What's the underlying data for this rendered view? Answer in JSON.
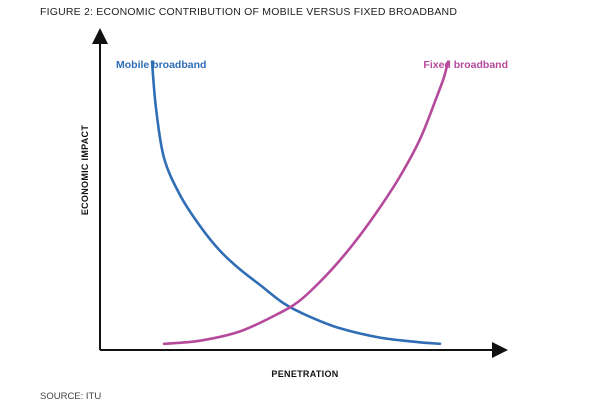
{
  "title": "FIGURE 2: ECONOMIC CONTRIBUTION OF MOBILE VERSUS FIXED BROADBAND",
  "source": "SOURCE: ITU",
  "chart_data": {
    "type": "line",
    "xlabel": "PENETRATION",
    "ylabel": "ECONOMIC IMPACT",
    "xlim": [
      0,
      1
    ],
    "ylim": [
      0,
      1
    ],
    "grid": false,
    "legend": "series labels above curves",
    "series": [
      {
        "name": "Mobile broadband",
        "color": "#2f6db5",
        "x": [
          0.13,
          0.14,
          0.16,
          0.2,
          0.25,
          0.3,
          0.35,
          0.4,
          0.46,
          0.52,
          0.6,
          0.7,
          0.8,
          0.85
        ],
        "y": [
          0.93,
          0.78,
          0.62,
          0.5,
          0.4,
          0.32,
          0.26,
          0.21,
          0.15,
          0.11,
          0.07,
          0.04,
          0.025,
          0.02
        ]
      },
      {
        "name": "Fixed broadband",
        "color": "#b5499b",
        "x": [
          0.16,
          0.25,
          0.35,
          0.45,
          0.5,
          0.55,
          0.6,
          0.65,
          0.7,
          0.75,
          0.8,
          0.84,
          0.86,
          0.87
        ],
        "y": [
          0.02,
          0.03,
          0.06,
          0.12,
          0.16,
          0.22,
          0.29,
          0.37,
          0.46,
          0.56,
          0.68,
          0.81,
          0.88,
          0.93
        ]
      }
    ]
  }
}
